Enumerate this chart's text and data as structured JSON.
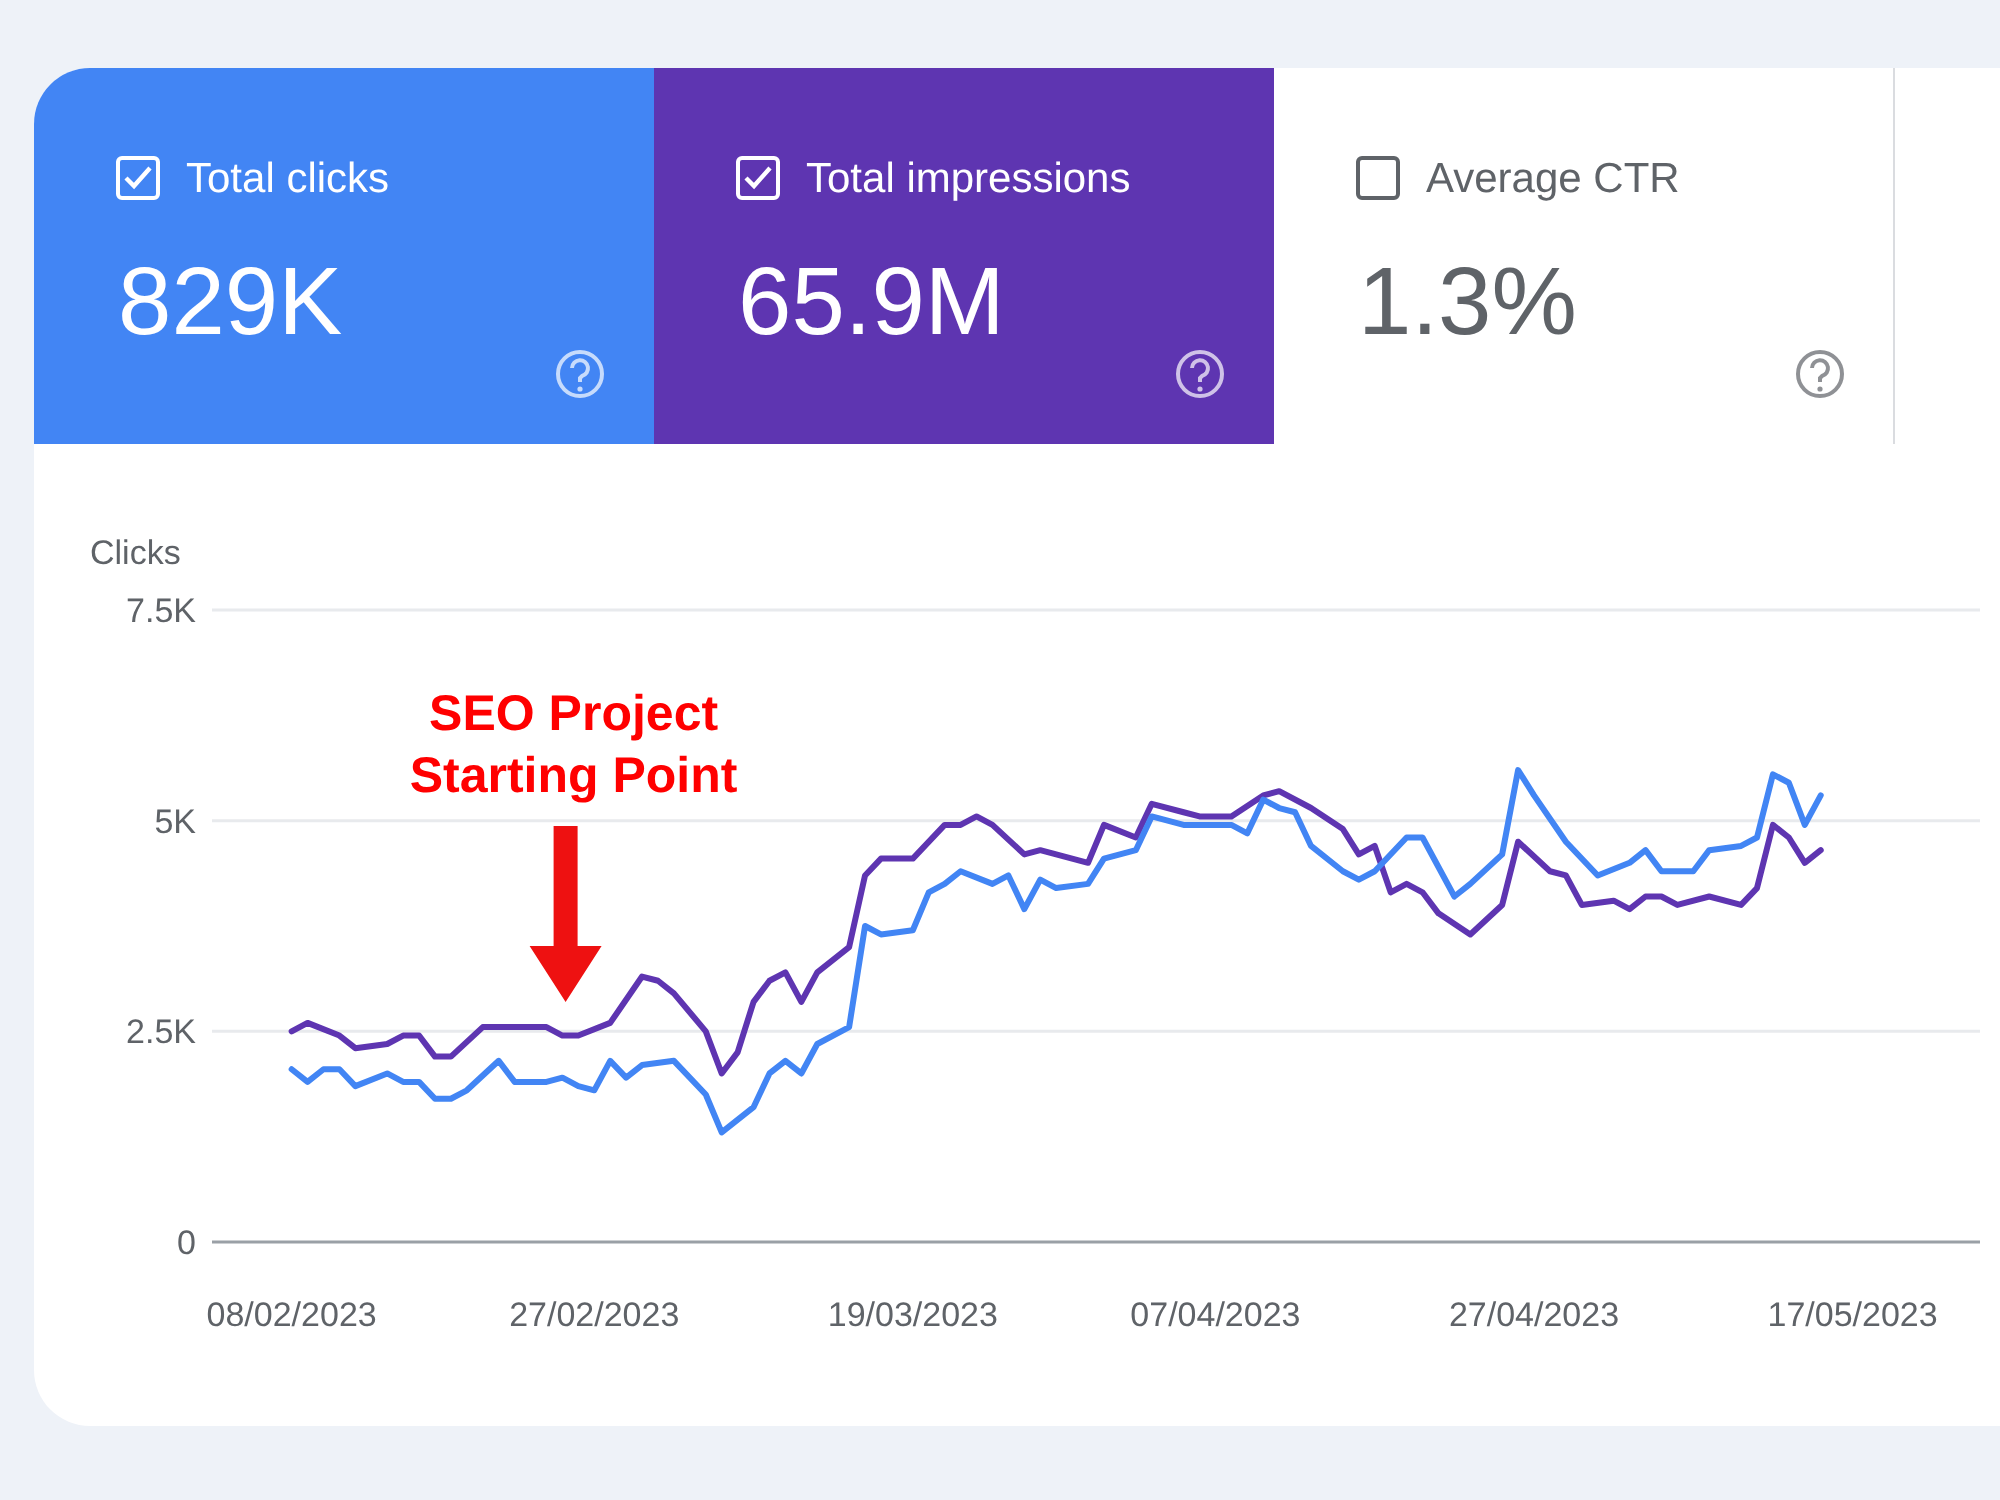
{
  "chart_data": [
    {
      "type": "other",
      "categories": [
        "Total clicks",
        "Total impressions",
        "Average CTR"
      ],
      "value_labels": [
        "829K",
        "65.9M",
        "1.3%"
      ],
      "colors": [
        "#4285f4",
        "#5e35b1",
        "#ffffff"
      ]
    },
    {
      "type": "line",
      "ylabel": "Clicks",
      "xlim": [
        "2023-02-03",
        "2023-05-25"
      ],
      "ylim": [
        0,
        7500
      ],
      "grid": "y",
      "yticks": [
        0,
        {
          "value": 2500,
          "label": "2.5K"
        },
        {
          "value": 5000,
          "label": "5K"
        },
        {
          "value": 7500,
          "label": "7.5K"
        }
      ],
      "xticks": [
        {
          "value": "2023-02-08",
          "label": "08/02/2023"
        },
        {
          "value": "2023-02-27",
          "label": "27/02/2023"
        },
        {
          "value": "2023-03-19",
          "label": "19/03/2023"
        },
        {
          "value": "2023-04-07",
          "label": "07/04/2023"
        },
        {
          "value": "2023-04-27",
          "label": "27/04/2023"
        },
        {
          "value": "2023-05-17",
          "label": "17/05/2023"
        }
      ],
      "annotations": [
        "SEO Project Starting Point"
      ],
      "series": [
        {
          "color": "#5e35b1",
          "x": [
            "2023-02-08",
            "2023-02-09",
            "2023-02-11",
            "2023-02-12",
            "2023-02-14",
            "2023-02-15",
            "2023-02-16",
            "2023-02-17",
            "2023-02-18",
            "2023-02-20",
            "2023-02-21",
            "2023-02-24",
            "2023-02-25",
            "2023-02-26",
            "2023-02-28",
            "2023-03-02",
            "2023-03-03",
            "2023-03-04",
            "2023-03-06",
            "2023-03-07",
            "2023-03-08",
            "2023-03-09",
            "2023-03-10",
            "2023-03-11",
            "2023-03-12",
            "2023-03-13",
            "2023-03-15",
            "2023-03-16",
            "2023-03-17",
            "2023-03-19",
            "2023-03-21",
            "2023-03-22",
            "2023-03-23",
            "2023-03-24",
            "2023-03-26",
            "2023-03-27",
            "2023-03-28",
            "2023-03-30",
            "2023-03-31",
            "2023-04-02",
            "2023-04-03",
            "2023-04-05",
            "2023-04-06",
            "2023-04-08",
            "2023-04-10",
            "2023-04-11",
            "2023-04-13",
            "2023-04-15",
            "2023-04-16",
            "2023-04-17",
            "2023-04-18",
            "2023-04-19",
            "2023-04-20",
            "2023-04-21",
            "2023-04-23",
            "2023-04-25",
            "2023-04-26",
            "2023-04-28",
            "2023-04-29",
            "2023-04-30",
            "2023-05-02",
            "2023-05-03",
            "2023-05-04",
            "2023-05-05",
            "2023-05-06",
            "2023-05-08",
            "2023-05-10",
            "2023-05-11",
            "2023-05-12",
            "2023-05-13",
            "2023-05-14",
            "2023-05-15"
          ],
          "values": [
            2500,
            2600,
            2450,
            2300,
            2350,
            2450,
            2450,
            2200,
            2200,
            2550,
            2550,
            2550,
            2450,
            2450,
            2600,
            3150,
            3100,
            2950,
            2500,
            2000,
            2250,
            2850,
            3100,
            3200,
            2850,
            3200,
            3500,
            4350,
            4550,
            4550,
            4950,
            4950,
            5050,
            4950,
            4600,
            4650,
            4600,
            4500,
            4950,
            4800,
            5200,
            5100,
            5050,
            5050,
            5300,
            5350,
            5150,
            4900,
            4600,
            4700,
            4150,
            4250,
            4150,
            3900,
            3650,
            4000,
            4750,
            4400,
            4350,
            4000,
            4050,
            3950,
            4100,
            4100,
            4000,
            4100,
            4000,
            4200,
            4950,
            4800,
            4500,
            4650
          ]
        },
        {
          "color": "#4285f4",
          "x": [
            "2023-02-08",
            "2023-02-09",
            "2023-02-10",
            "2023-02-11",
            "2023-02-12",
            "2023-02-14",
            "2023-02-15",
            "2023-02-16",
            "2023-02-17",
            "2023-02-18",
            "2023-02-19",
            "2023-02-21",
            "2023-02-22",
            "2023-02-24",
            "2023-02-25",
            "2023-02-26",
            "2023-02-27",
            "2023-02-28",
            "2023-03-01",
            "2023-03-02",
            "2023-03-04",
            "2023-03-06",
            "2023-03-07",
            "2023-03-09",
            "2023-03-10",
            "2023-03-11",
            "2023-03-12",
            "2023-03-13",
            "2023-03-15",
            "2023-03-16",
            "2023-03-17",
            "2023-03-19",
            "2023-03-20",
            "2023-03-21",
            "2023-03-22",
            "2023-03-24",
            "2023-03-25",
            "2023-03-26",
            "2023-03-27",
            "2023-03-28",
            "2023-03-30",
            "2023-03-31",
            "2023-04-02",
            "2023-04-03",
            "2023-04-05",
            "2023-04-08",
            "2023-04-09",
            "2023-04-10",
            "2023-04-11",
            "2023-04-12",
            "2023-04-13",
            "2023-04-15",
            "2023-04-16",
            "2023-04-17",
            "2023-04-19",
            "2023-04-20",
            "2023-04-22",
            "2023-04-23",
            "2023-04-25",
            "2023-04-26",
            "2023-04-27",
            "2023-04-29",
            "2023-05-01",
            "2023-05-03",
            "2023-05-04",
            "2023-05-05",
            "2023-05-07",
            "2023-05-08",
            "2023-05-10",
            "2023-05-11",
            "2023-05-12",
            "2023-05-13",
            "2023-05-14",
            "2023-05-15"
          ],
          "values": [
            2050,
            1900,
            2050,
            2050,
            1850,
            2000,
            1900,
            1900,
            1700,
            1700,
            1800,
            2150,
            1900,
            1900,
            1950,
            1850,
            1800,
            2150,
            1950,
            2100,
            2150,
            1750,
            1300,
            1600,
            2000,
            2150,
            2000,
            2350,
            2550,
            3750,
            3650,
            3700,
            4150,
            4250,
            4400,
            4250,
            4350,
            3950,
            4300,
            4200,
            4250,
            4550,
            4650,
            5050,
            4950,
            4950,
            4850,
            5250,
            5150,
            5100,
            4700,
            4400,
            4300,
            4400,
            4800,
            4800,
            4100,
            4250,
            4600,
            5600,
            5300,
            4750,
            4350,
            4500,
            4650,
            4400,
            4400,
            4650,
            4700,
            4800,
            5550,
            5450,
            4950,
            5300
          ]
        }
      ]
    }
  ]
}
